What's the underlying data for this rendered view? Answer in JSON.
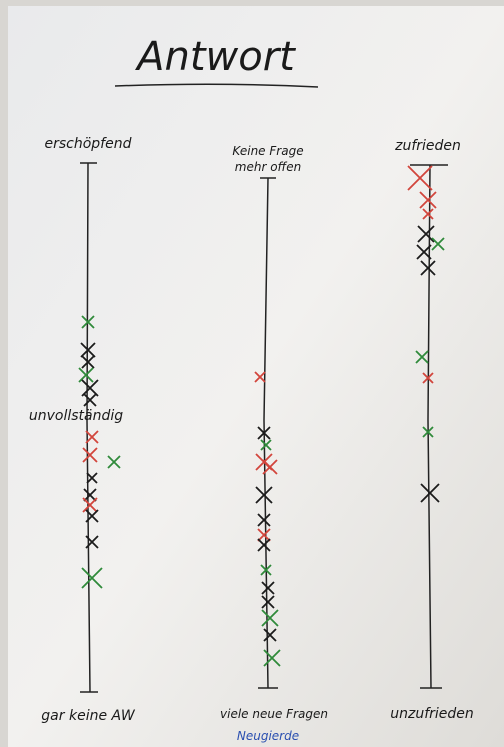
{
  "title": "Antwort",
  "scales": [
    {
      "top": [
        "erschöpfend"
      ],
      "middle": "unvollständig",
      "bottom": "gar keine AW"
    },
    {
      "top": [
        "Keine Frage",
        "mehr offen"
      ],
      "bottom": "viele neue Fragen",
      "note": "Neugierde"
    },
    {
      "top": [
        "zufrieden"
      ],
      "bottom": "unzufrieden"
    }
  ]
}
